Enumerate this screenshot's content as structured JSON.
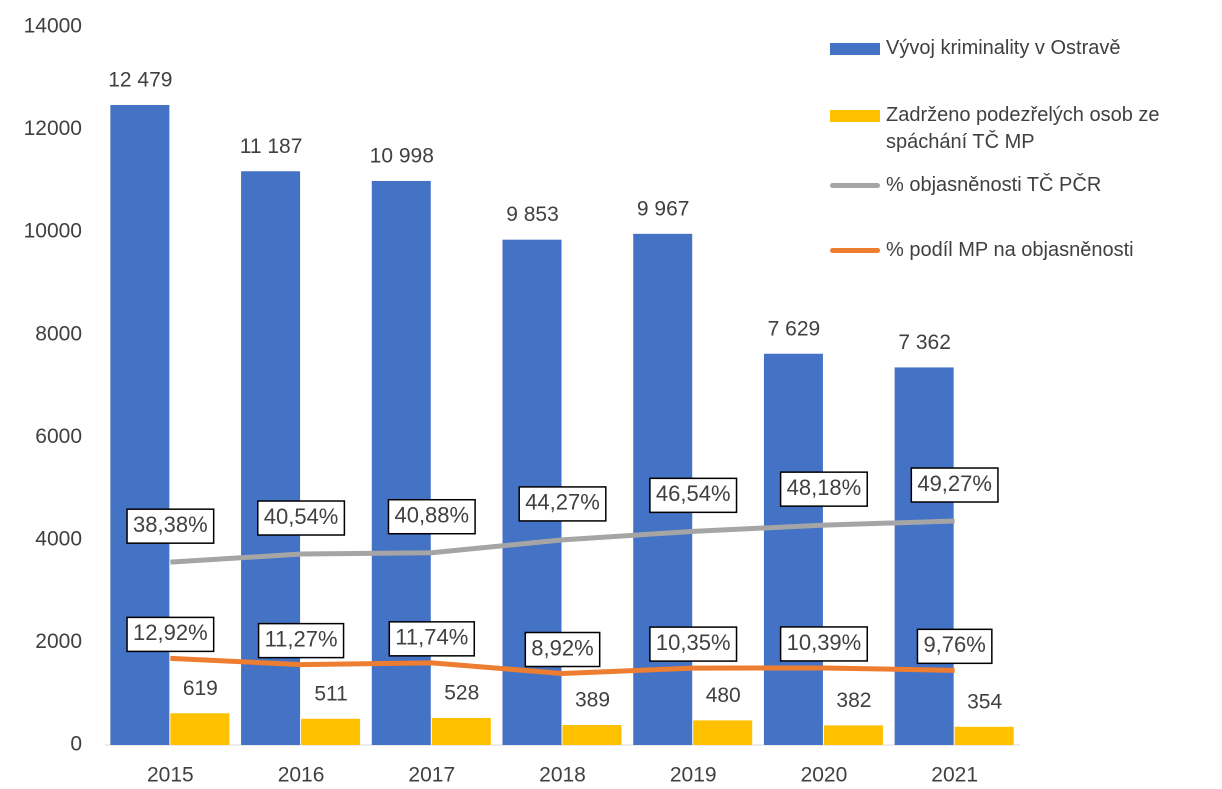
{
  "chart_data": {
    "type": "bar",
    "categories": [
      "2015",
      "2016",
      "2017",
      "2018",
      "2019",
      "2020",
      "2021"
    ],
    "ylim": [
      0,
      14000
    ],
    "yticks": [
      0,
      2000,
      4000,
      6000,
      8000,
      10000,
      12000,
      14000
    ],
    "y2lim": [
      -10,
      180
    ],
    "legend": "right",
    "series": [
      {
        "name": "Vývoj kriminality v Ostravě",
        "type": "bar",
        "color": "#4472c4",
        "values": [
          12479,
          11187,
          10998,
          9853,
          9967,
          7629,
          7362
        ],
        "value_labels": [
          "12 479",
          "11 187",
          "10 998",
          "9 853",
          "9 967",
          "7 629",
          "7 362"
        ]
      },
      {
        "name": "Zadrženo podezřelých osob ze spáchání TČ MP",
        "type": "bar",
        "color": "#ffc000",
        "values": [
          619,
          511,
          528,
          389,
          480,
          382,
          354
        ]
      },
      {
        "name": "% objasněnosti TČ PČR",
        "type": "line",
        "axis": "y2",
        "color": "#a5a5a5",
        "values": [
          38.38,
          40.54,
          40.88,
          44.27,
          46.54,
          48.18,
          49.27
        ],
        "value_labels": [
          "38,38%",
          "40,54%",
          "40,88%",
          "44,27%",
          "46,54%",
          "48,18%",
          "49,27%"
        ]
      },
      {
        "name": "% podíl MP na objasněnosti",
        "type": "line",
        "axis": "y2",
        "color": "#ed7d31",
        "values": [
          12.92,
          11.27,
          11.74,
          8.92,
          10.35,
          10.39,
          9.76
        ],
        "value_labels": [
          "12,92%",
          "11,27%",
          "11,74%",
          "8,92%",
          "10,35%",
          "10,39%",
          "9,76%"
        ]
      }
    ]
  }
}
